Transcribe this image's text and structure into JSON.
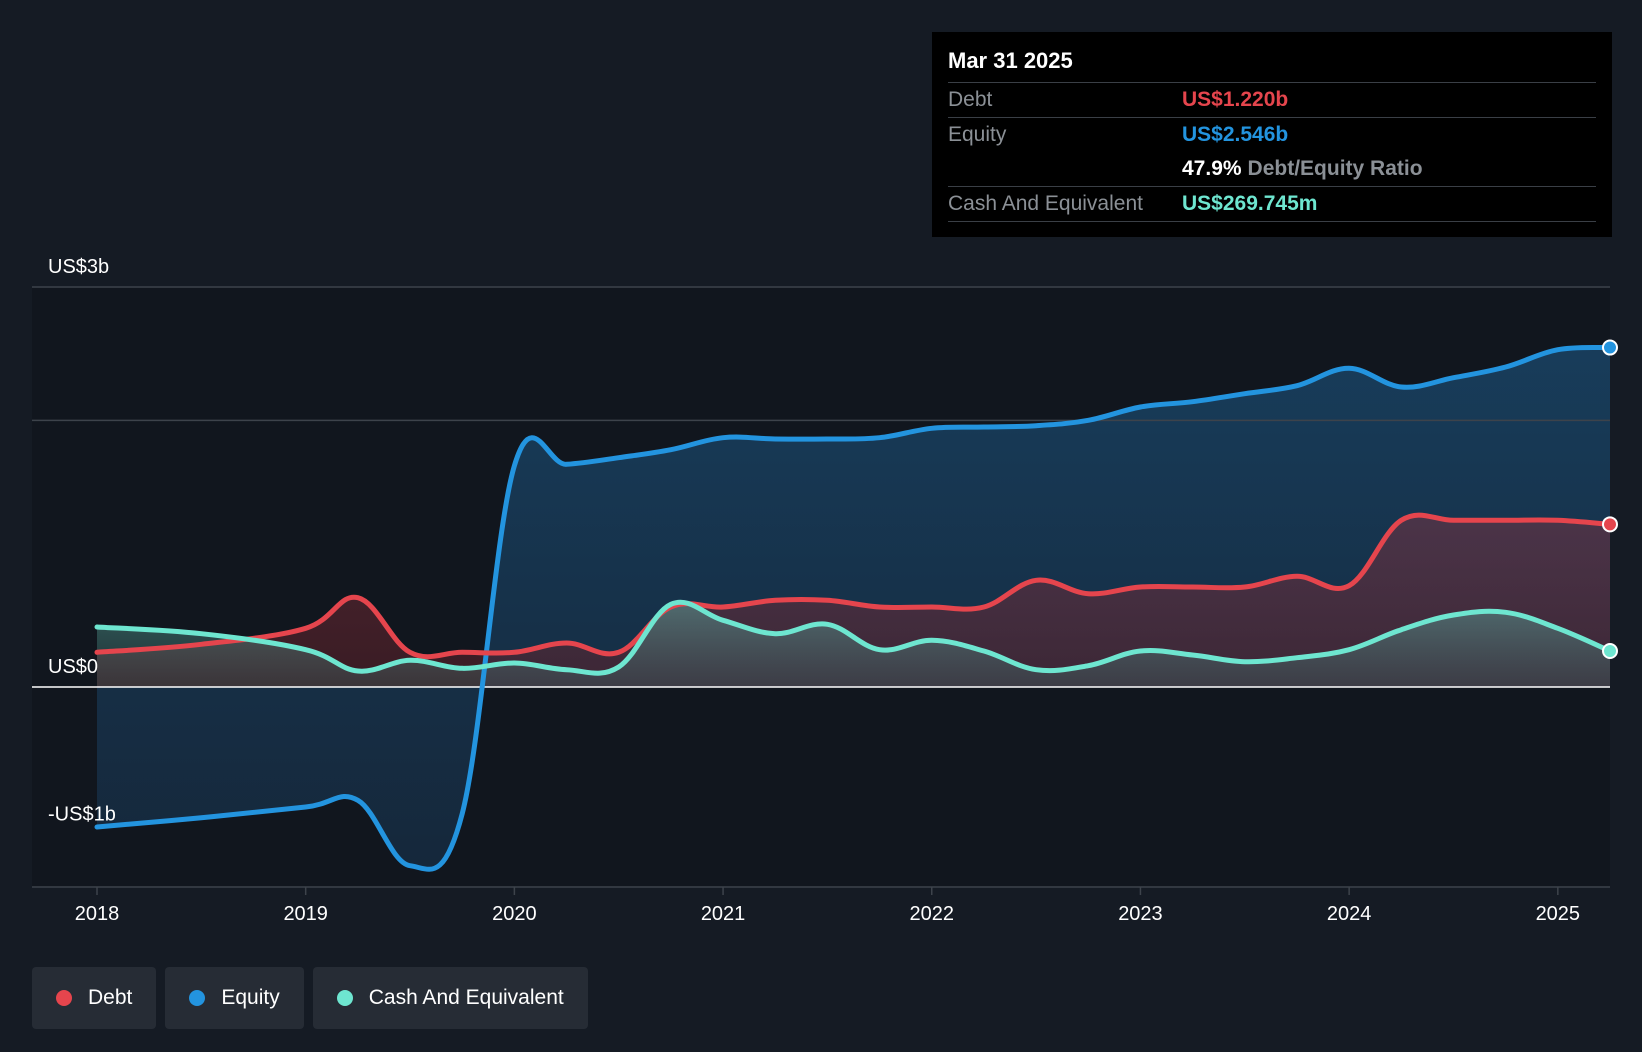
{
  "colors": {
    "debt": "#e5454d",
    "equity": "#2394df",
    "cash": "#6ee6d0",
    "background": "#151b24",
    "grid": "#3d434b",
    "zero_line": "#ffffff"
  },
  "tooltip": {
    "date": "Mar 31 2025",
    "debt_label": "Debt",
    "debt_value": "US$1.220b",
    "equity_label": "Equity",
    "equity_value": "US$2.546b",
    "ratio_value": "47.9%",
    "ratio_label": "Debt/Equity Ratio",
    "cash_label": "Cash And Equivalent",
    "cash_value": "US$269.745m"
  },
  "legend": {
    "debt": "Debt",
    "equity": "Equity",
    "cash": "Cash And Equivalent"
  },
  "chart_data": {
    "type": "area",
    "title": "",
    "xlabel": "",
    "ylabel": "",
    "ylim": [
      -1.5,
      3.0
    ],
    "y_ticks": [
      {
        "value": 3,
        "label": "US$3b"
      },
      {
        "value": 0,
        "label": "US$0"
      },
      {
        "value": -1,
        "label": "-US$1b"
      }
    ],
    "xlim": [
      2017.7,
      2025.25
    ],
    "x_ticks": [
      {
        "value": 2018,
        "label": "2018"
      },
      {
        "value": 2019,
        "label": "2019"
      },
      {
        "value": 2020,
        "label": "2020"
      },
      {
        "value": 2021,
        "label": "2021"
      },
      {
        "value": 2022,
        "label": "2022"
      },
      {
        "value": 2023,
        "label": "2023"
      },
      {
        "value": 2024,
        "label": "2024"
      },
      {
        "value": 2025,
        "label": "2025"
      }
    ],
    "series": [
      {
        "name": "Equity",
        "key": "equity",
        "points": [
          [
            2018.0,
            -1.05
          ],
          [
            2018.5,
            -0.98
          ],
          [
            2019.0,
            -0.9
          ],
          [
            2019.25,
            -0.85
          ],
          [
            2019.5,
            -1.34
          ],
          [
            2019.75,
            -0.95
          ],
          [
            2020.0,
            1.66
          ],
          [
            2020.25,
            1.67
          ],
          [
            2020.5,
            1.72
          ],
          [
            2020.75,
            1.78
          ],
          [
            2021.0,
            1.87
          ],
          [
            2021.25,
            1.86
          ],
          [
            2021.5,
            1.86
          ],
          [
            2021.75,
            1.87
          ],
          [
            2022.0,
            1.94
          ],
          [
            2022.25,
            1.95
          ],
          [
            2022.5,
            1.96
          ],
          [
            2022.75,
            2.0
          ],
          [
            2023.0,
            2.1
          ],
          [
            2023.25,
            2.14
          ],
          [
            2023.5,
            2.2
          ],
          [
            2023.75,
            2.26
          ],
          [
            2024.0,
            2.39
          ],
          [
            2024.25,
            2.25
          ],
          [
            2024.5,
            2.32
          ],
          [
            2024.75,
            2.4
          ],
          [
            2025.0,
            2.53
          ],
          [
            2025.25,
            2.546
          ]
        ]
      },
      {
        "name": "Debt",
        "key": "debt",
        "points": [
          [
            2018.0,
            0.26
          ],
          [
            2018.5,
            0.32
          ],
          [
            2019.0,
            0.44
          ],
          [
            2019.25,
            0.67
          ],
          [
            2019.5,
            0.26
          ],
          [
            2019.75,
            0.26
          ],
          [
            2020.0,
            0.26
          ],
          [
            2020.25,
            0.33
          ],
          [
            2020.5,
            0.26
          ],
          [
            2020.75,
            0.6
          ],
          [
            2021.0,
            0.6
          ],
          [
            2021.25,
            0.65
          ],
          [
            2021.5,
            0.65
          ],
          [
            2021.75,
            0.6
          ],
          [
            2022.0,
            0.6
          ],
          [
            2022.25,
            0.6
          ],
          [
            2022.5,
            0.8
          ],
          [
            2022.75,
            0.7
          ],
          [
            2023.0,
            0.75
          ],
          [
            2023.25,
            0.75
          ],
          [
            2023.5,
            0.75
          ],
          [
            2023.75,
            0.83
          ],
          [
            2024.0,
            0.76
          ],
          [
            2024.25,
            1.25
          ],
          [
            2024.5,
            1.25
          ],
          [
            2024.75,
            1.25
          ],
          [
            2025.0,
            1.25
          ],
          [
            2025.25,
            1.22
          ]
        ]
      },
      {
        "name": "Cash And Equivalent",
        "key": "cash",
        "points": [
          [
            2018.0,
            0.45
          ],
          [
            2018.5,
            0.4
          ],
          [
            2019.0,
            0.28
          ],
          [
            2019.25,
            0.12
          ],
          [
            2019.5,
            0.2
          ],
          [
            2019.75,
            0.14
          ],
          [
            2020.0,
            0.18
          ],
          [
            2020.25,
            0.13
          ],
          [
            2020.5,
            0.15
          ],
          [
            2020.75,
            0.62
          ],
          [
            2021.0,
            0.5
          ],
          [
            2021.25,
            0.4
          ],
          [
            2021.5,
            0.47
          ],
          [
            2021.75,
            0.28
          ],
          [
            2022.0,
            0.35
          ],
          [
            2022.25,
            0.27
          ],
          [
            2022.5,
            0.13
          ],
          [
            2022.75,
            0.16
          ],
          [
            2023.0,
            0.27
          ],
          [
            2023.25,
            0.24
          ],
          [
            2023.5,
            0.19
          ],
          [
            2023.75,
            0.22
          ],
          [
            2024.0,
            0.28
          ],
          [
            2024.25,
            0.43
          ],
          [
            2024.5,
            0.54
          ],
          [
            2024.75,
            0.56
          ],
          [
            2025.0,
            0.44
          ],
          [
            2025.25,
            0.27
          ]
        ]
      }
    ]
  }
}
